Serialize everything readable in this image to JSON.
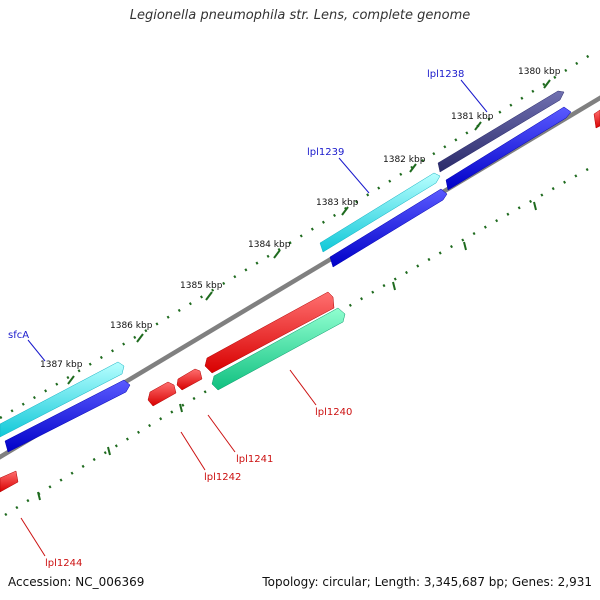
{
  "title": "Legionella pneumophila str. Lens, complete genome",
  "footer": {
    "accession": "Accession: NC_006369",
    "summary": "Topology: circular; Length: 3,345,687 bp; Genes: 2,931"
  },
  "colors": {
    "backbone": "#808080",
    "ticks": "#1f6b1f",
    "label_forward": "#1a1acc",
    "label_reverse": "#cc1111",
    "cyan": "#22dddd",
    "blue": "#1010ee",
    "navy": "#3a3a80",
    "red": "#ee1111",
    "mint": "#22dd99"
  },
  "kbp_labels": [
    "1380 kbp",
    "1381 kbp",
    "1382 kbp",
    "1383 kbp",
    "1384 kbp",
    "1385 kbp",
    "1386 kbp",
    "1387 kbp"
  ],
  "gene_labels": {
    "lpl1238": "lpl1238",
    "lpl1239": "lpl1239",
    "sfcA": "sfcA",
    "lpl1240": "lpl1240",
    "lpl1241": "lpl1241",
    "lpl1242": "lpl1242",
    "lpl1244": "lpl1244"
  }
}
